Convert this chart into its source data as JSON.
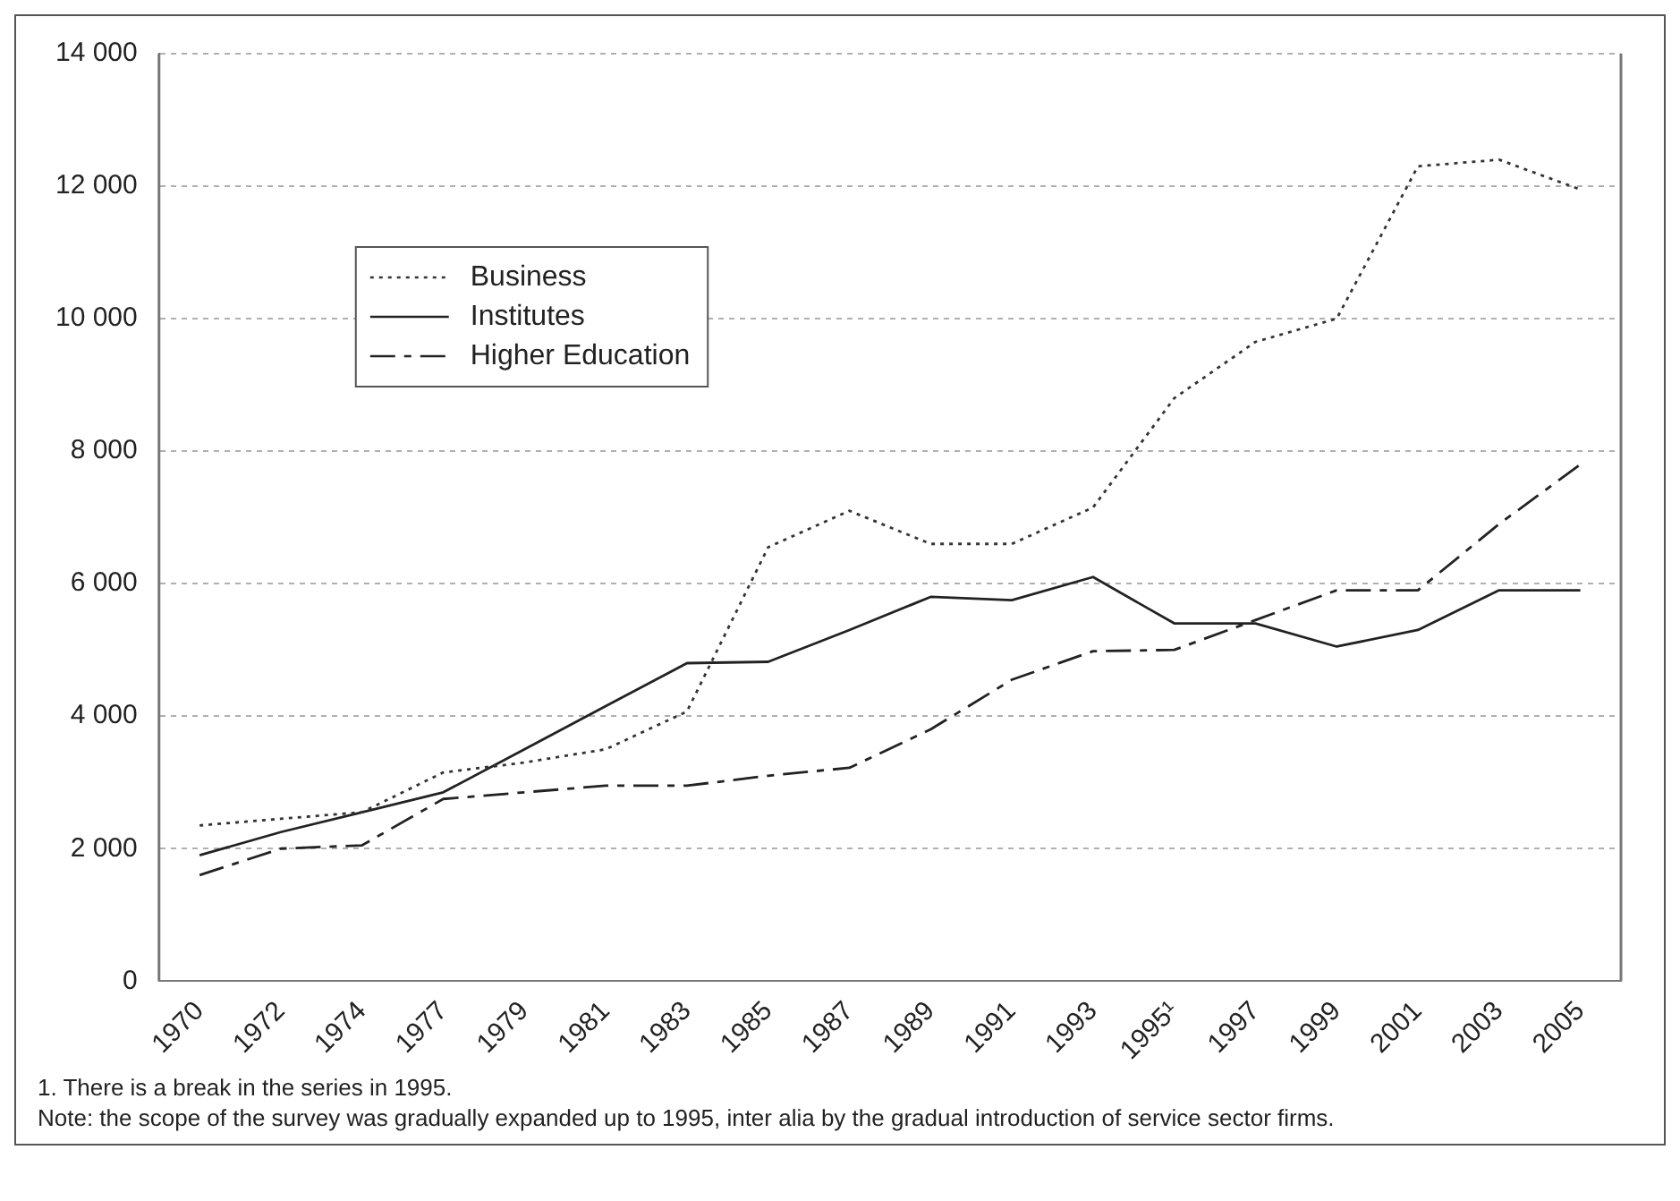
{
  "chart_data": {
    "type": "line",
    "categories": [
      "1970",
      "1972",
      "1974",
      "1977",
      "1979",
      "1981",
      "1983",
      "1985",
      "1987",
      "1989",
      "1991",
      "1993",
      "1995¹",
      "1997",
      "1999",
      "2001",
      "2003",
      "2005"
    ],
    "series": [
      {
        "name": "Business",
        "color": "#333333",
        "line_style": "dotted",
        "values": [
          2350,
          2450,
          2550,
          3150,
          3300,
          3500,
          4070,
          6550,
          7100,
          6600,
          6600,
          7150,
          8800,
          9650,
          10000,
          12300,
          12400,
          11950
        ]
      },
      {
        "name": "Institutes",
        "color": "#222222",
        "line_style": "solid",
        "values": [
          1900,
          2250,
          2550,
          2850,
          3500,
          4150,
          4800,
          4820,
          5300,
          5800,
          5750,
          6100,
          5400,
          5400,
          5050,
          5300,
          5900,
          5900
        ]
      },
      {
        "name": "Higher Education",
        "color": "#222222",
        "line_style": "dashed",
        "values": [
          1600,
          2000,
          2050,
          2750,
          2850,
          2950,
          2950,
          3100,
          3220,
          3800,
          4550,
          4980,
          5000,
          5450,
          5900,
          5900,
          6900,
          7800
        ]
      }
    ],
    "ylim": [
      0,
      14000
    ],
    "yticks": [
      {
        "value": 0,
        "label": "0"
      },
      {
        "value": 2000,
        "label": "2 000"
      },
      {
        "value": 4000,
        "label": "4 000"
      },
      {
        "value": 6000,
        "label": "6 000"
      },
      {
        "value": 8000,
        "label": "8 000"
      },
      {
        "value": 10000,
        "label": "10 000"
      },
      {
        "value": 12000,
        "label": "12 000"
      },
      {
        "value": 14000,
        "label": "14 000"
      }
    ],
    "grid": "y",
    "legend": "top left",
    "marker": "none",
    "annotations": [
      "1. There is a break in the series in 1995.",
      "Note: the scope of the survey was gradually expanded up to 1995, inter alia by the gradual introduction of service sector firms."
    ]
  }
}
